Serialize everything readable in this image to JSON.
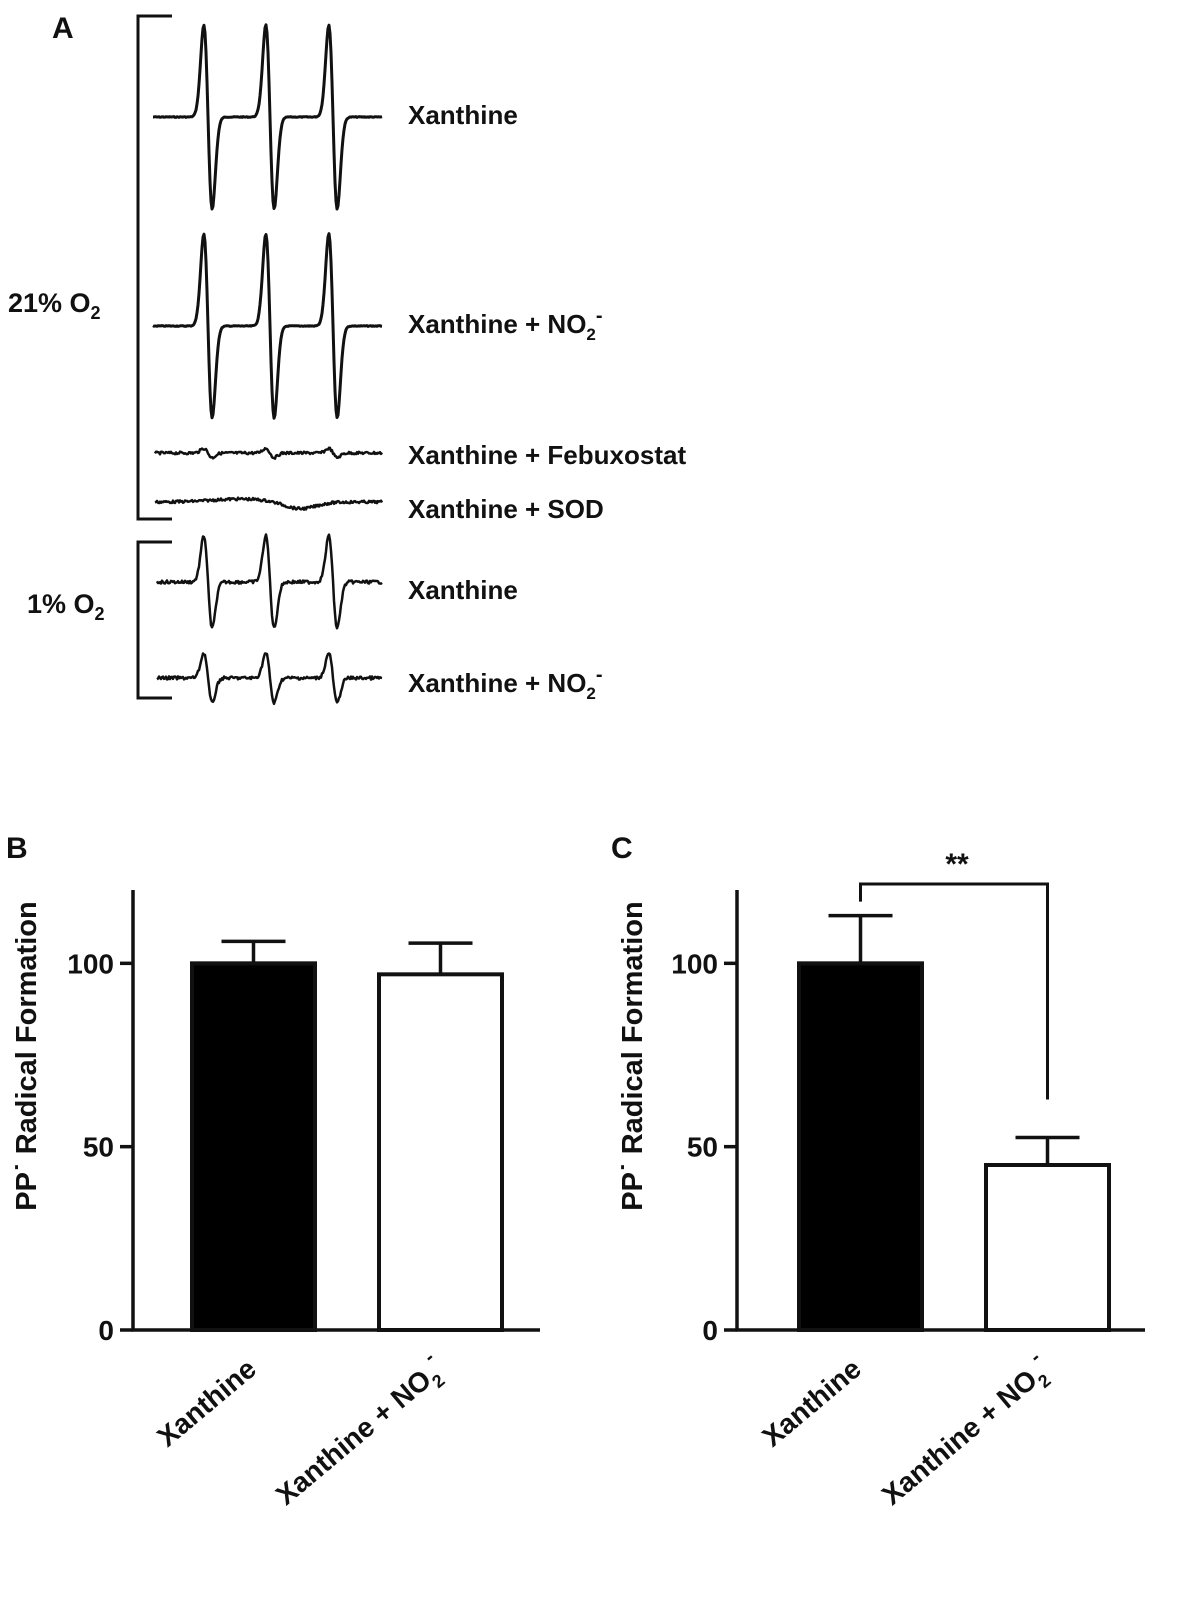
{
  "panels": {
    "a": {
      "letter": "A",
      "groups": [
        {
          "main": "21% O",
          "sub": "2"
        },
        {
          "main": "1% O",
          "sub": "2"
        }
      ],
      "traces": [
        {
          "label": "Xanthine",
          "sub": "",
          "sup": "",
          "amplitude": 1.0
        },
        {
          "label": "Xanthine + NO",
          "sub": "2",
          "sup": "-",
          "amplitude": 1.0
        },
        {
          "label": "Xanthine + Febuxostat",
          "sub": "",
          "sup": "",
          "amplitude": 0.05
        },
        {
          "label": "Xanthine + SOD",
          "sub": "",
          "sup": "",
          "amplitude": 0.0
        },
        {
          "label": "Xanthine",
          "sub": "",
          "sup": "",
          "amplitude": 0.5
        },
        {
          "label": "Xanthine + NO",
          "sub": "2",
          "sup": "-",
          "amplitude": 0.27
        }
      ]
    }
  },
  "chart_data": [
    {
      "type": "bar",
      "panel": "B",
      "ylabel": "PP˙ Radical Formation",
      "ylim": [
        0,
        120
      ],
      "yticks": [
        0,
        50,
        100
      ],
      "categories": [
        {
          "main": "Xanthine",
          "sub": "",
          "sup": ""
        },
        {
          "main": "Xanthine + NO",
          "sub": "2",
          "sup": "-"
        }
      ],
      "values": [
        100,
        97
      ],
      "errors": [
        6,
        8.5
      ],
      "fills": [
        "#000000",
        "#ffffff"
      ],
      "significance": null
    },
    {
      "type": "bar",
      "panel": "C",
      "ylabel": "PP˙ Radical Formation",
      "ylim": [
        0,
        120
      ],
      "yticks": [
        0,
        50,
        100
      ],
      "categories": [
        {
          "main": "Xanthine",
          "sub": "",
          "sup": ""
        },
        {
          "main": "Xanthine + NO",
          "sub": "2",
          "sup": "-"
        }
      ],
      "values": [
        100,
        45
      ],
      "errors": [
        13,
        7.5
      ],
      "fills": [
        "#000000",
        "#ffffff"
      ],
      "significance": "**"
    }
  ]
}
